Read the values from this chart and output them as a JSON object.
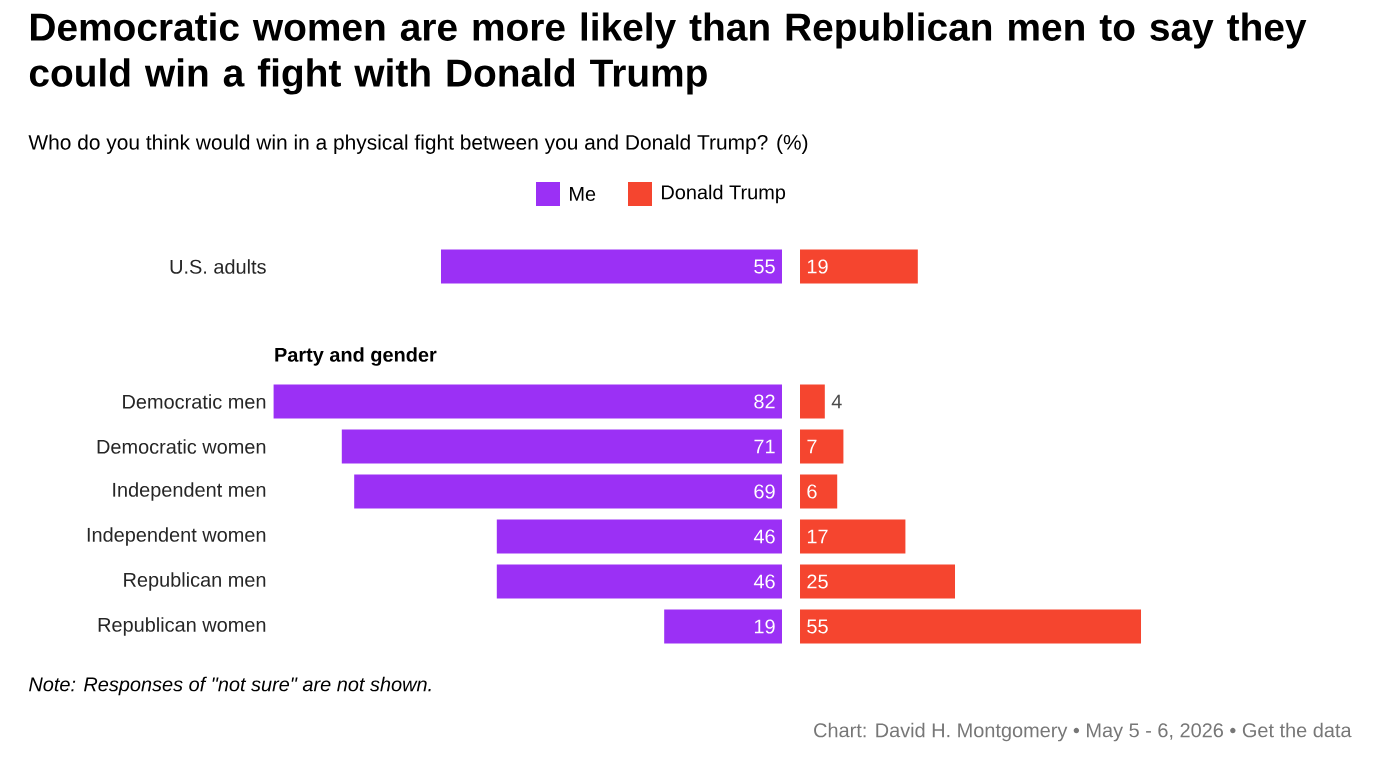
{
  "chart_data": [
    {
      "type": "bar",
      "orientation": "horizontal",
      "title": "Democratic women are more likely than Republican men to say they could win a fight with Donald Trump",
      "subtitle": "Who do you think would win in a physical fight between you and Donald Trump? (%)",
      "categories": [
        "U.S. adults",
        null,
        "Party and gender",
        "Democratic men",
        "Democratic women",
        "Independent men",
        "Independent women",
        "Republican men",
        "Republican women"
      ],
      "xlim": [
        82,
        0
      ],
      "series": [
        {
          "name": "Me",
          "color": "#9b30f5",
          "values": [
            55,
            null,
            null,
            82,
            71,
            69,
            46,
            46,
            19
          ]
        }
      ],
      "data_labels": true,
      "legend": "top",
      "annotations": [
        "Note: Responses of \"not sure\" are not shown.",
        "Chart: David H. Montgomery • May 5 - 6, 2026 • Get the data"
      ]
    },
    {
      "type": "bar",
      "orientation": "horizontal",
      "categories": [
        null,
        null,
        null,
        null,
        null,
        null,
        null,
        null,
        null
      ],
      "series": [
        {
          "name": "Donald Trump",
          "color": "#f5452f",
          "values": [
            19,
            null,
            null,
            4,
            7,
            6,
            17,
            25,
            55
          ]
        }
      ],
      "data_labels": true,
      "legend": "top"
    }
  ]
}
